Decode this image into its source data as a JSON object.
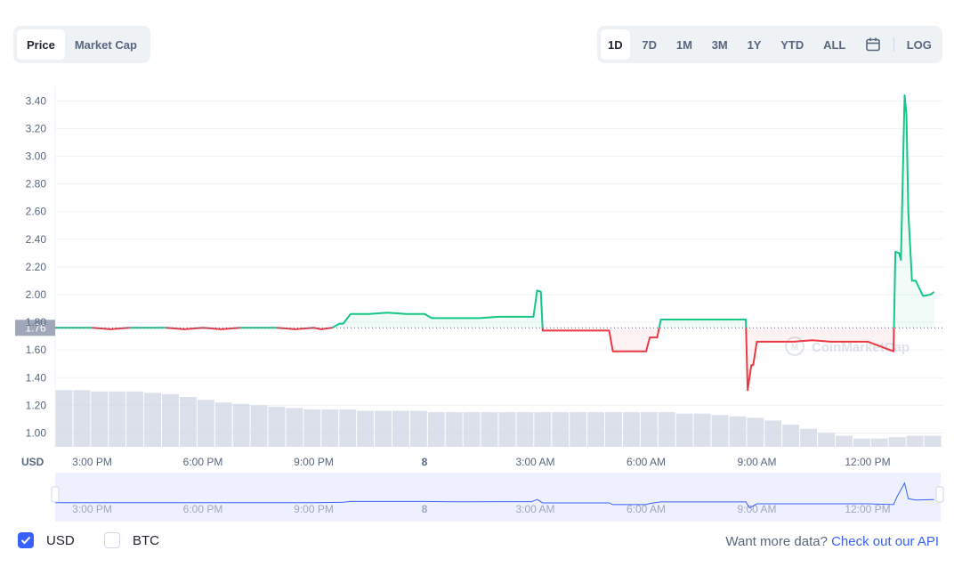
{
  "tabs_left": [
    {
      "label": "Price",
      "active": true
    },
    {
      "label": "Market Cap",
      "active": false
    }
  ],
  "tabs_right": [
    {
      "label": "1D",
      "active": true
    },
    {
      "label": "7D",
      "active": false
    },
    {
      "label": "1M",
      "active": false
    },
    {
      "label": "3M",
      "active": false
    },
    {
      "label": "1Y",
      "active": false
    },
    {
      "label": "YTD",
      "active": false
    },
    {
      "label": "ALL",
      "active": false
    }
  ],
  "log_label": "LOG",
  "currency_label": "USD",
  "watermark": "CoinMarketCap",
  "current_price_label": "1.76",
  "colors": {
    "up": "#16c784",
    "down": "#ea3943",
    "volume": "#cfd6e4",
    "nav_line": "#3861fb",
    "nav_bg": "#eef1fd",
    "accent": "#3861fb"
  },
  "checkboxes": [
    {
      "label": "USD",
      "checked": true
    },
    {
      "label": "BTC",
      "checked": false
    }
  ],
  "more_data": {
    "text": "Want more data?",
    "link": "Check out our API"
  },
  "chart_data": {
    "type": "line",
    "ylim": [
      0.9,
      3.55
    ],
    "yticks": [
      "3.40",
      "3.20",
      "3.00",
      "2.80",
      "2.60",
      "2.40",
      "2.20",
      "2.00",
      "1.80",
      "1.60",
      "1.40",
      "1.20",
      "1.00"
    ],
    "xlim": [
      0,
      24
    ],
    "xticks": [
      {
        "x": 1.0,
        "label": "3:00 PM"
      },
      {
        "x": 4.0,
        "label": "6:00 PM"
      },
      {
        "x": 7.0,
        "label": "9:00 PM"
      },
      {
        "x": 10.0,
        "label": "8"
      },
      {
        "x": 13.0,
        "label": "3:00 AM"
      },
      {
        "x": 16.0,
        "label": "6:00 AM"
      },
      {
        "x": 19.0,
        "label": "9:00 AM"
      },
      {
        "x": 22.0,
        "label": "12:00 PM"
      }
    ],
    "baseline": 1.76,
    "series": [
      {
        "x": [
          0,
          0.3,
          0.6,
          1.0,
          1.5,
          2.0,
          2.5,
          3.0,
          3.5,
          4.0,
          4.5,
          5.0,
          5.5,
          6.0,
          6.5,
          7.0,
          7.2,
          7.5,
          7.7,
          7.8,
          8.0,
          8.5,
          9.0,
          9.5,
          10.0,
          10.2,
          10.5,
          11.0,
          11.5,
          12.0,
          12.5,
          12.95,
          13.05,
          13.15,
          13.2,
          13.3,
          13.5,
          14.0,
          14.5,
          15.0,
          15.1,
          15.2,
          15.5,
          15.8,
          16.0,
          16.1,
          16.3,
          16.4,
          16.5,
          17.0,
          17.5,
          18.0,
          18.5,
          18.7,
          18.75,
          18.85,
          18.9,
          19.0,
          19.1,
          19.2,
          19.4,
          20.0,
          20.5,
          21.0,
          21.5,
          22.0,
          22.7,
          22.75,
          22.85,
          22.9,
          23.0,
          23.05,
          23.1,
          23.2,
          23.3,
          23.5,
          23.7,
          23.8
        ],
        "values": [
          1.76,
          1.76,
          1.76,
          1.76,
          1.75,
          1.76,
          1.76,
          1.76,
          1.75,
          1.76,
          1.75,
          1.76,
          1.76,
          1.76,
          1.75,
          1.76,
          1.75,
          1.76,
          1.79,
          1.79,
          1.86,
          1.86,
          1.87,
          1.86,
          1.86,
          1.83,
          1.83,
          1.83,
          1.83,
          1.84,
          1.84,
          1.84,
          2.03,
          2.02,
          1.74,
          1.74,
          1.74,
          1.74,
          1.74,
          1.74,
          1.59,
          1.59,
          1.59,
          1.59,
          1.59,
          1.69,
          1.69,
          1.82,
          1.82,
          1.82,
          1.82,
          1.82,
          1.82,
          1.82,
          1.31,
          1.49,
          1.49,
          1.66,
          1.66,
          1.66,
          1.66,
          1.66,
          1.67,
          1.66,
          1.66,
          1.66,
          1.59,
          2.31,
          2.3,
          2.25,
          3.44,
          3.3,
          2.6,
          2.1,
          2.1,
          1.99,
          2.0,
          2.02
        ]
      }
    ],
    "volume": [
      1.31,
      1.31,
      1.3,
      1.3,
      1.3,
      1.29,
      1.28,
      1.26,
      1.24,
      1.22,
      1.21,
      1.2,
      1.19,
      1.18,
      1.17,
      1.17,
      1.17,
      1.16,
      1.16,
      1.16,
      1.16,
      1.15,
      1.15,
      1.15,
      1.15,
      1.15,
      1.15,
      1.15,
      1.15,
      1.15,
      1.15,
      1.15,
      1.15,
      1.15,
      1.15,
      1.14,
      1.14,
      1.13,
      1.12,
      1.11,
      1.09,
      1.06,
      1.03,
      1.0,
      0.98,
      0.96,
      0.96,
      0.97,
      0.98,
      0.98
    ],
    "nav_series": {
      "x": [
        0,
        1,
        2,
        3,
        4,
        5,
        6,
        7,
        7.8,
        8,
        9,
        10,
        11,
        12,
        12.9,
        13.05,
        13.2,
        14,
        15,
        15.1,
        16,
        16.1,
        16.4,
        17,
        18,
        18.7,
        18.8,
        19,
        20,
        21,
        22,
        22.7,
        22.8,
        23.0,
        23.1,
        23.3,
        23.8
      ],
      "values": [
        1.76,
        1.76,
        1.76,
        1.76,
        1.76,
        1.76,
        1.76,
        1.76,
        1.79,
        1.86,
        1.86,
        1.86,
        1.83,
        1.84,
        1.84,
        2.03,
        1.74,
        1.74,
        1.74,
        1.59,
        1.59,
        1.69,
        1.82,
        1.82,
        1.82,
        1.82,
        1.31,
        1.66,
        1.66,
        1.66,
        1.66,
        1.59,
        2.3,
        3.44,
        2.1,
        1.99,
        2.02
      ]
    }
  }
}
